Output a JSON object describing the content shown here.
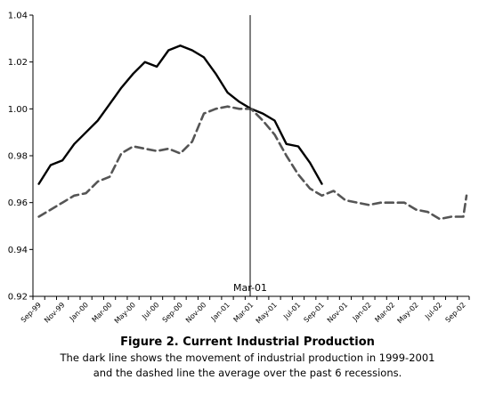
{
  "chart_data": {
    "type": "line",
    "title": "",
    "xlabel": "",
    "ylabel": "",
    "ylim": [
      0.92,
      1.04
    ],
    "yticks": [
      "0.92",
      "0.94",
      "0.96",
      "0.98",
      "1.00",
      "1.02",
      "1.04"
    ],
    "grid": false,
    "legend": "none",
    "xtick_labels": [
      "Sep-99",
      "Nov-99",
      "Jan-00",
      "Mar-00",
      "May-00",
      "Jul-00",
      "Sep-00",
      "Nov-00",
      "Jan-01",
      "Mar-01",
      "May-01",
      "Jul-01",
      "Sep-01",
      "Nov-01",
      "Jan-02",
      "Mar-02",
      "May-02",
      "Jul-02",
      "Sep-02"
    ],
    "x": [
      "Sep-99",
      "Oct-99",
      "Nov-99",
      "Dec-99",
      "Jan-00",
      "Feb-00",
      "Mar-00",
      "Apr-00",
      "May-00",
      "Jun-00",
      "Jul-00",
      "Aug-00",
      "Sep-00",
      "Oct-00",
      "Nov-00",
      "Dec-00",
      "Jan-01",
      "Feb-01",
      "Mar-01",
      "Apr-01",
      "May-01",
      "Jun-01",
      "Jul-01",
      "Aug-01",
      "Sep-01",
      "Oct-01",
      "Nov-01",
      "Dec-01",
      "Jan-02",
      "Feb-02",
      "Mar-02",
      "Apr-02",
      "May-02",
      "Jun-02",
      "Jul-02",
      "Aug-02",
      "Sep-02"
    ],
    "series": [
      {
        "style": "solid",
        "color": "#000000",
        "values": [
          0.968,
          0.976,
          0.978,
          0.985,
          0.99,
          0.995,
          1.002,
          1.009,
          1.015,
          1.02,
          1.018,
          1.025,
          1.027,
          1.025,
          1.022,
          1.015,
          1.007,
          1.003,
          1.0,
          0.998,
          0.995,
          0.985,
          0.984,
          0.977,
          0.968,
          null,
          null,
          null,
          null,
          null,
          null,
          null,
          null,
          null,
          null,
          null,
          null
        ]
      },
      {
        "style": "dashed",
        "color": "#555555",
        "values": [
          0.954,
          0.957,
          0.96,
          0.963,
          0.964,
          0.969,
          0.971,
          0.981,
          0.984,
          0.983,
          0.982,
          0.983,
          0.981,
          0.986,
          0.998,
          1.0,
          1.001,
          1.0,
          1.0,
          0.995,
          0.989,
          0.98,
          0.972,
          0.966,
          0.963,
          0.965,
          0.961,
          0.96,
          0.959,
          0.96,
          0.96,
          0.96,
          0.957,
          0.956,
          0.953,
          0.954,
          0.954
        ]
      }
    ],
    "final_point": 0.963,
    "annotations": [
      {
        "text": "Mar-01",
        "x": "Mar-01",
        "type": "vertical-line"
      }
    ]
  },
  "caption": {
    "title": "Figure 2. Current Industrial Production",
    "line1": "The dark line shows the movement of industrial production in 1999-2001",
    "line2": "and the dashed line the average over the past 6 recessions."
  }
}
